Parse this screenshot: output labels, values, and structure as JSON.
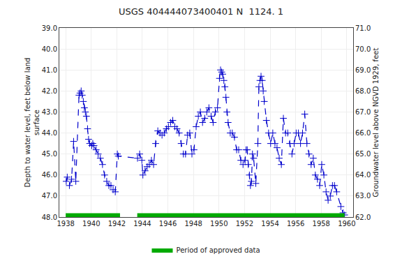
{
  "chart_data": {
    "type": "line",
    "title": "USGS 404444073400401 N  1124. 1",
    "ylabel": "Depth to water level, feet below land\nsurface",
    "y2label": "Groundwater level above NGVD 1929, feet",
    "xlim": [
      1937.5,
      1960.5
    ],
    "xticks": [
      1938,
      1940,
      1942,
      1944,
      1946,
      1948,
      1950,
      1952,
      1954,
      1956,
      1958,
      1960
    ],
    "ylim": [
      48.0,
      39.0
    ],
    "yticks": [
      {
        "value": 39.0,
        "label": "39.0"
      },
      {
        "value": 40.0,
        "label": "40.0"
      },
      {
        "value": 41.0,
        "label": "41.0"
      },
      {
        "value": 42.0,
        "label": "42.0"
      },
      {
        "value": 43.0,
        "label": "43.0"
      },
      {
        "value": 44.0,
        "label": "44.0"
      },
      {
        "value": 45.0,
        "label": "45.0"
      },
      {
        "value": 46.0,
        "label": "46.0"
      },
      {
        "value": 47.0,
        "label": "47.0"
      },
      {
        "value": 48.0,
        "label": "48.0"
      }
    ],
    "y2lim": [
      62.0,
      71.0
    ],
    "y2ticks": [
      {
        "value": 62.0,
        "label": "62.0"
      },
      {
        "value": 63.0,
        "label": "63.0"
      },
      {
        "value": 64.0,
        "label": "64.0"
      },
      {
        "value": 65.0,
        "label": "65.0"
      },
      {
        "value": 66.0,
        "label": "66.0"
      },
      {
        "value": 67.0,
        "label": "67.0"
      },
      {
        "value": 68.0,
        "label": "68.0"
      },
      {
        "value": 69.0,
        "label": "69.0"
      },
      {
        "value": 70.0,
        "label": "70.0"
      },
      {
        "value": 71.0,
        "label": "71.0"
      }
    ],
    "grid": true,
    "legend": "bottom",
    "x": [
      1938.04,
      1938.12,
      1938.29,
      1938.46,
      1938.62,
      1938.79,
      1939.04,
      1939.12,
      1939.21,
      1939.29,
      1939.38,
      1939.46,
      1939.54,
      1939.62,
      1939.71,
      1939.79,
      1939.88,
      1940.04,
      1940.12,
      1940.21,
      1940.38,
      1940.54,
      1940.71,
      1940.88,
      1941.04,
      1941.21,
      1941.38,
      1941.54,
      1941.71,
      1941.88,
      1942.04,
      1942.12,
      1943.62,
      1943.79,
      1943.96,
      1944.04,
      1944.21,
      1944.38,
      1944.54,
      1944.71,
      1944.88,
      1945.04,
      1945.21,
      1945.38,
      1945.54,
      1945.71,
      1945.88,
      1946.04,
      1946.21,
      1946.38,
      1946.54,
      1946.71,
      1946.88,
      1947.04,
      1947.21,
      1947.38,
      1947.54,
      1947.71,
      1947.88,
      1948.04,
      1948.21,
      1948.38,
      1948.54,
      1948.71,
      1948.88,
      1949.04,
      1949.21,
      1949.38,
      1949.54,
      1949.71,
      1949.88,
      1950.04,
      1950.12,
      1950.21,
      1950.29,
      1950.38,
      1950.46,
      1950.54,
      1950.62,
      1950.71,
      1950.88,
      1951.04,
      1951.21,
      1951.38,
      1951.54,
      1951.71,
      1951.88,
      1952.04,
      1952.12,
      1952.21,
      1952.29,
      1952.38,
      1952.46,
      1952.54,
      1952.62,
      1952.71,
      1952.88,
      1953.04,
      1953.12,
      1953.21,
      1953.29,
      1953.38,
      1953.46,
      1953.54,
      1953.71,
      1953.88,
      1954.04,
      1954.21,
      1954.38,
      1954.54,
      1954.71,
      1954.88,
      1955.04,
      1955.21,
      1955.38,
      1955.54,
      1955.71,
      1955.88,
      1956.04,
      1956.21,
      1956.38,
      1956.54,
      1956.71,
      1956.88,
      1957.04,
      1957.21,
      1957.38,
      1957.54,
      1957.71,
      1957.88,
      1958.04,
      1958.21,
      1958.38,
      1958.54,
      1958.71,
      1958.88,
      1959.04,
      1959.21,
      1959.54,
      1959.71,
      1959.83
    ],
    "series": [
      {
        "color": "#0000cc",
        "line_style": "dashed",
        "marker": "cross",
        "values": [
          46.3,
          46.1,
          46.5,
          46.2,
          44.4,
          46.3,
          42.2,
          42.1,
          42.0,
          42.2,
          42.5,
          42.8,
          43.0,
          43.2,
          43.8,
          44.3,
          44.5,
          44.6,
          44.5,
          44.6,
          44.8,
          45.0,
          45.2,
          45.5,
          46.0,
          46.3,
          46.5,
          46.5,
          46.7,
          46.8,
          45.0,
          45.1,
          45.2,
          45.0,
          45.3,
          46.0,
          45.8,
          45.6,
          45.5,
          45.3,
          45.5,
          44.5,
          43.9,
          44.0,
          44.1,
          44.0,
          43.8,
          43.7,
          43.5,
          43.4,
          43.7,
          43.8,
          44.0,
          44.5,
          45.0,
          45.0,
          44.1,
          44.0,
          45.0,
          44.8,
          43.7,
          43.2,
          43.0,
          43.5,
          43.3,
          43.0,
          42.8,
          43.2,
          43.5,
          43.0,
          42.8,
          41.4,
          41.0,
          41.1,
          41.2,
          41.5,
          41.8,
          42.3,
          43.0,
          43.5,
          44.0,
          44.0,
          44.2,
          44.8,
          44.8,
          45.3,
          45.5,
          45.3,
          44.8,
          44.8,
          45.5,
          46.0,
          46.5,
          46.3,
          45.0,
          45.2,
          46.4,
          44.5,
          41.8,
          41.5,
          41.3,
          41.5,
          42.0,
          42.5,
          43.4,
          44.0,
          44.5,
          44.0,
          44.5,
          44.7,
          45.2,
          45.5,
          43.3,
          44.0,
          44.0,
          44.5,
          45.0,
          44.5,
          44.0,
          44.0,
          44.5,
          44.0,
          43.1,
          44.5,
          45.0,
          45.5,
          45.2,
          46.0,
          46.2,
          46.5,
          45.5,
          46.0,
          46.8,
          47.2,
          47.0,
          46.5,
          46.5,
          46.8,
          47.5,
          47.8,
          47.9
        ]
      },
      {
        "name": "Period of approved data",
        "type": "band",
        "color": "#00aa00",
        "segments": [
          [
            1938.0,
            1942.25
          ],
          [
            1943.6,
            1959.83
          ]
        ],
        "y": 48.0,
        "height": 0.18
      }
    ]
  }
}
